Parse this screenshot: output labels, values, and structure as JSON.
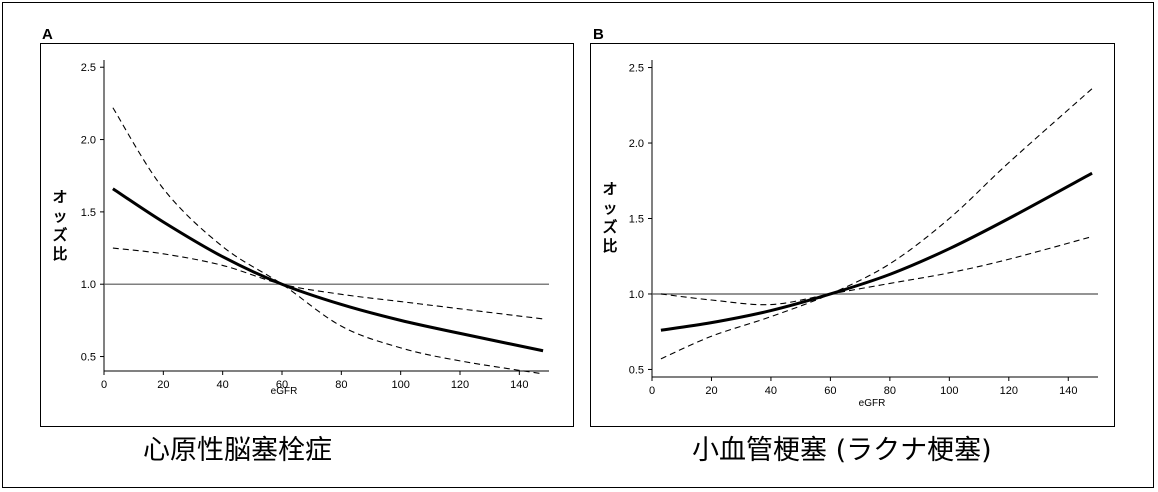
{
  "panels": [
    {
      "letter": "A",
      "caption": "心原性脳塞栓症",
      "ylabel": "オッズ比",
      "xlabel": "eGFR"
    },
    {
      "letter": "B",
      "caption": "小血管梗塞 (ラクナ梗塞)",
      "ylabel": "オッズ比",
      "xlabel": "eGFR"
    }
  ],
  "chart_data": [
    {
      "type": "line",
      "title": "心原性脳塞栓症",
      "xlabel": "eGFR",
      "ylabel": "オッズ比",
      "xlim": [
        0,
        150
      ],
      "ylim": [
        0.4,
        2.55
      ],
      "xticks": [
        0,
        20,
        40,
        60,
        80,
        100,
        120,
        140
      ],
      "yticks": [
        0.5,
        1.0,
        1.5,
        2.0,
        2.5
      ],
      "ytick_labels": [
        "0.5",
        "1.0",
        "1.5",
        "2.0",
        "2.5"
      ],
      "reference_line": 1.0,
      "x": [
        3,
        20,
        40,
        60,
        80,
        100,
        120,
        148
      ],
      "series": [
        {
          "role": "estimate",
          "style": "solid-bold",
          "values": [
            1.66,
            1.43,
            1.19,
            1.0,
            0.86,
            0.75,
            0.66,
            0.54
          ]
        },
        {
          "role": "upper-ci",
          "style": "dashed",
          "values": [
            2.22,
            1.66,
            1.26,
            1.0,
            0.71,
            0.56,
            0.47,
            0.38
          ]
        },
        {
          "role": "lower-ci",
          "style": "dashed",
          "values": [
            1.25,
            1.21,
            1.13,
            1.0,
            0.93,
            0.88,
            0.83,
            0.76
          ]
        }
      ]
    },
    {
      "type": "line",
      "title": "小血管梗塞 (ラクナ梗塞)",
      "xlabel": "eGFR",
      "ylabel": "オッズ比",
      "xlim": [
        0,
        150
      ],
      "ylim": [
        0.45,
        2.55
      ],
      "xticks": [
        0,
        20,
        40,
        60,
        80,
        100,
        120,
        140
      ],
      "yticks": [
        0.5,
        1.0,
        1.5,
        2.0,
        2.5
      ],
      "ytick_labels": [
        "0.5",
        "1.0",
        "1.5",
        "2.0",
        "2.5"
      ],
      "reference_line": 1.0,
      "x": [
        3,
        20,
        40,
        60,
        80,
        100,
        120,
        148
      ],
      "series": [
        {
          "role": "estimate",
          "style": "solid-bold",
          "values": [
            0.76,
            0.81,
            0.89,
            1.0,
            1.13,
            1.3,
            1.5,
            1.8
          ]
        },
        {
          "role": "upper-ci",
          "style": "dashed",
          "values": [
            0.57,
            0.72,
            0.85,
            1.0,
            1.2,
            1.5,
            1.87,
            2.36
          ]
        },
        {
          "role": "lower-ci",
          "style": "dashed",
          "values": [
            1.0,
            0.96,
            0.93,
            1.0,
            1.07,
            1.14,
            1.23,
            1.38
          ]
        }
      ]
    }
  ]
}
